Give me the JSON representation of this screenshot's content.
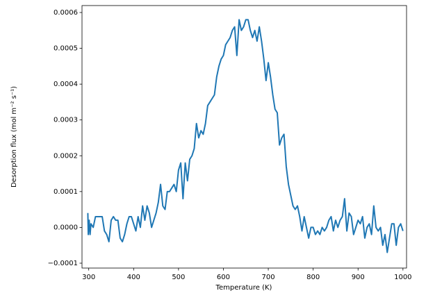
{
  "chart_data": {
    "type": "line",
    "xlabel": "Temperature (K)",
    "ylabel": "Desorption flux (mol m⁻² s⁻¹)",
    "xlim": [
      285,
      1008
    ],
    "xticks": [
      300,
      400,
      500,
      600,
      700,
      800,
      900,
      1000
    ],
    "ylim": [
      -0.0001136,
      0.0006194
    ],
    "yticks": [
      {
        "value": -0.0001,
        "label": "−0.0001"
      },
      {
        "value": 0,
        "label": "0.0000"
      },
      0.0001,
      0.0002,
      0.0003,
      0.0004,
      0.0005,
      0.0006
    ],
    "grid": false,
    "x": [
      298,
      299,
      301,
      303,
      305,
      310,
      315,
      320,
      325,
      330,
      335,
      340,
      345,
      350,
      355,
      360,
      365,
      370,
      375,
      380,
      385,
      390,
      395,
      400,
      405,
      410,
      415,
      420,
      425,
      430,
      435,
      440,
      445,
      450,
      455,
      460,
      465,
      470,
      475,
      480,
      485,
      490,
      495,
      500,
      505,
      510,
      515,
      520,
      525,
      530,
      535,
      540,
      545,
      550,
      555,
      560,
      565,
      570,
      575,
      580,
      585,
      590,
      595,
      600,
      605,
      610,
      615,
      620,
      625,
      630,
      635,
      640,
      645,
      650,
      655,
      660,
      665,
      670,
      675,
      680,
      685,
      690,
      695,
      700,
      705,
      710,
      715,
      720,
      725,
      730,
      735,
      740,
      745,
      750,
      755,
      760,
      765,
      770,
      775,
      780,
      785,
      790,
      795,
      800,
      805,
      810,
      815,
      820,
      825,
      830,
      835,
      840,
      845,
      850,
      855,
      860,
      865,
      870,
      875,
      880,
      885,
      890,
      895,
      900,
      905,
      910,
      915,
      920,
      925,
      930,
      935,
      940,
      945,
      950,
      955,
      960,
      965,
      970,
      975,
      980,
      985,
      990,
      995,
      1000
    ],
    "series": [
      {
        "color": "#1f77b4",
        "values": [
          4e-05,
          -2e-05,
          2e-05,
          -2e-05,
          1e-05,
          0,
          3e-05,
          3e-05,
          3e-05,
          3e-05,
          -1e-05,
          -2e-05,
          -4e-05,
          2e-05,
          3e-05,
          2e-05,
          2e-05,
          -3e-05,
          -4e-05,
          -2e-05,
          1e-05,
          3e-05,
          3e-05,
          1e-05,
          -1e-05,
          3e-05,
          0,
          6e-05,
          2e-05,
          6e-05,
          4e-05,
          0,
          2e-05,
          4e-05,
          7e-05,
          0.00012,
          6e-05,
          5e-05,
          0.0001,
          0.0001,
          0.00011,
          0.00012,
          0.0001,
          0.00016,
          0.00018,
          8e-05,
          0.00018,
          0.00013,
          0.00019,
          0.0002,
          0.00022,
          0.00029,
          0.00025,
          0.00027,
          0.00026,
          0.00029,
          0.00034,
          0.00035,
          0.00036,
          0.00037,
          0.00042,
          0.00045,
          0.00047,
          0.00048,
          0.00051,
          0.00052,
          0.00053,
          0.00055,
          0.00056,
          0.00048,
          0.00058,
          0.00055,
          0.00056,
          0.00058,
          0.00058,
          0.00055,
          0.00053,
          0.00055,
          0.00052,
          0.00056,
          0.00052,
          0.00047,
          0.00041,
          0.00046,
          0.00042,
          0.00037,
          0.00033,
          0.00032,
          0.00023,
          0.00025,
          0.00026,
          0.00017,
          0.00012,
          9e-05,
          6e-05,
          5e-05,
          6e-05,
          3e-05,
          -1e-05,
          3e-05,
          0,
          -3e-05,
          0,
          0,
          -2e-05,
          -1e-05,
          -2e-05,
          0,
          -1e-05,
          0,
          2e-05,
          3e-05,
          -1e-05,
          2e-05,
          0,
          2e-05,
          3e-05,
          8e-05,
          -1e-05,
          4e-05,
          3e-05,
          -2e-05,
          0,
          2e-05,
          1e-05,
          3e-05,
          -3e-05,
          0,
          1e-05,
          -2e-05,
          6e-05,
          0,
          -1e-05,
          0,
          -5e-05,
          -2e-05,
          -7e-05,
          -3e-05,
          1e-05,
          1e-05,
          -5e-05,
          0,
          1e-05,
          -1e-05
        ]
      }
    ]
  }
}
